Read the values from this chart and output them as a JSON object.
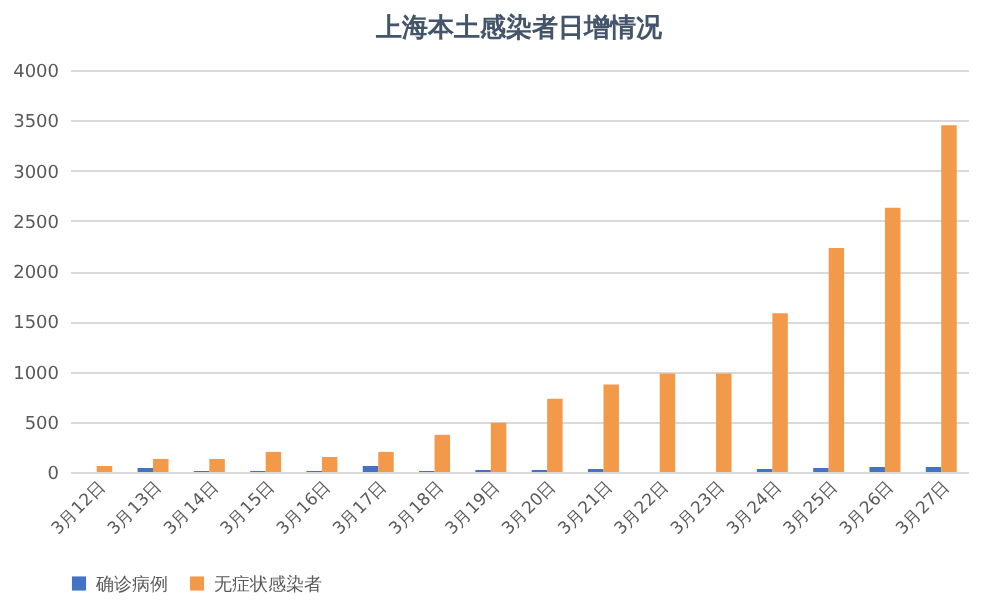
{
  "chart_data": {
    "type": "bar",
    "title": "上海本土感染者日增情况",
    "categories": [
      "3月12日",
      "3月13日",
      "3月14日",
      "3月15日",
      "3月16日",
      "3月17日",
      "3月18日",
      "3月19日",
      "3月20日",
      "3月21日",
      "3月22日",
      "3月23日",
      "3月24日",
      "3月25日",
      "3月26日",
      "3月27日"
    ],
    "series": [
      {
        "name": "确诊病例",
        "color": "#4472c4",
        "values": [
          0,
          40,
          10,
          10,
          10,
          60,
          10,
          20,
          20,
          30,
          0,
          0,
          30,
          40,
          50,
          50
        ]
      },
      {
        "name": "无症状感染者",
        "color": "#f39a4a",
        "values": [
          60,
          130,
          130,
          200,
          150,
          200,
          370,
          490,
          730,
          870,
          980,
          980,
          1580,
          2230,
          2630,
          3450
        ]
      }
    ],
    "ylim": [
      0,
      4000
    ],
    "yticks": [
      0,
      500,
      1000,
      1500,
      2000,
      2500,
      3000,
      3500,
      4000
    ],
    "grid": "y",
    "legend": "bottom"
  }
}
